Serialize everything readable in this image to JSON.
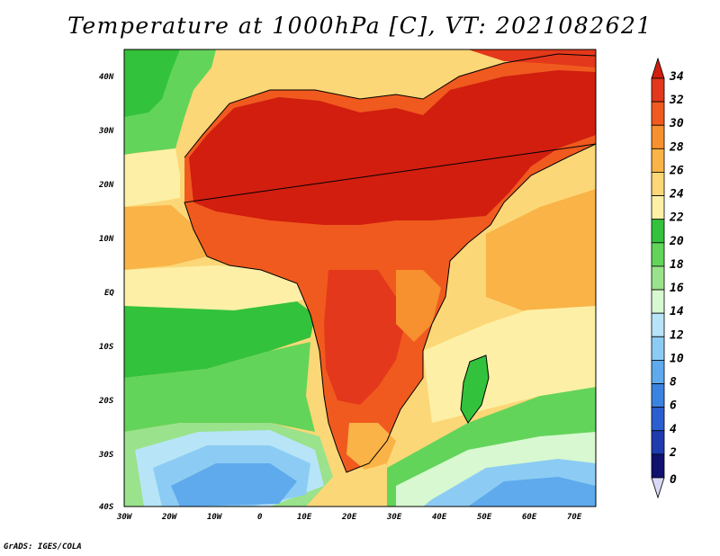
{
  "title": "Temperature at 1000hPa [C], VT: 2021082621",
  "credit": "GrADS: IGES/COLA",
  "lon_ticks": [
    "30W",
    "20W",
    "10W",
    "0",
    "10E",
    "20E",
    "30E",
    "40E",
    "50E",
    "60E",
    "70E"
  ],
  "lat_ticks": [
    "40N",
    "30N",
    "20N",
    "10N",
    "EQ",
    "10S",
    "20S",
    "30S",
    "40S"
  ],
  "colorbar": {
    "labels": [
      "34",
      "32",
      "30",
      "28",
      "26",
      "24",
      "22",
      "20",
      "18",
      "16",
      "14",
      "12",
      "10",
      "8",
      "6",
      "4",
      "2",
      "0"
    ],
    "colors": [
      "#d11e0f",
      "#e3381b",
      "#f05a1f",
      "#f7902f",
      "#f9b347",
      "#fcd777",
      "#fdf0a6",
      "#33c23c",
      "#63d45a",
      "#9ae28b",
      "#d7f8d0",
      "#b7e5f7",
      "#8cccf4",
      "#5eaaec",
      "#3b83e0",
      "#2b5fd1",
      "#1f3bb0",
      "#10126e",
      "#d9d9f7"
    ]
  }
}
